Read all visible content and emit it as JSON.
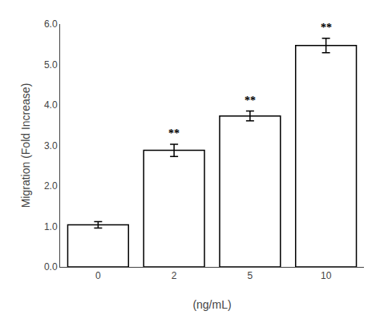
{
  "chart_data": {
    "type": "bar",
    "categories": [
      "0",
      "2",
      "5",
      "10"
    ],
    "values": [
      1.04,
      2.88,
      3.73,
      5.47
    ],
    "errors": [
      0.08,
      0.15,
      0.12,
      0.18
    ],
    "color": "#ffffff",
    "xlabel": "(ng/mL)",
    "ylabel": "Migration (Fold Increase)",
    "ylim": [
      0.0,
      6.0
    ],
    "yticks": [
      {
        "value": 0.0,
        "label": "0.0"
      },
      {
        "value": 1.0,
        "label": "1.0"
      },
      {
        "value": 2.0,
        "label": "2.0"
      },
      {
        "value": 3.0,
        "label": "3.0"
      },
      {
        "value": 4.0,
        "label": "4.0"
      },
      {
        "value": 5.0,
        "label": "5.0"
      },
      {
        "value": 6.0,
        "label": "6.0"
      }
    ],
    "annotations": [
      {
        "category": "2",
        "text": "**"
      },
      {
        "category": "5",
        "text": "**"
      },
      {
        "category": "10",
        "text": "**"
      }
    ],
    "grid": false
  }
}
